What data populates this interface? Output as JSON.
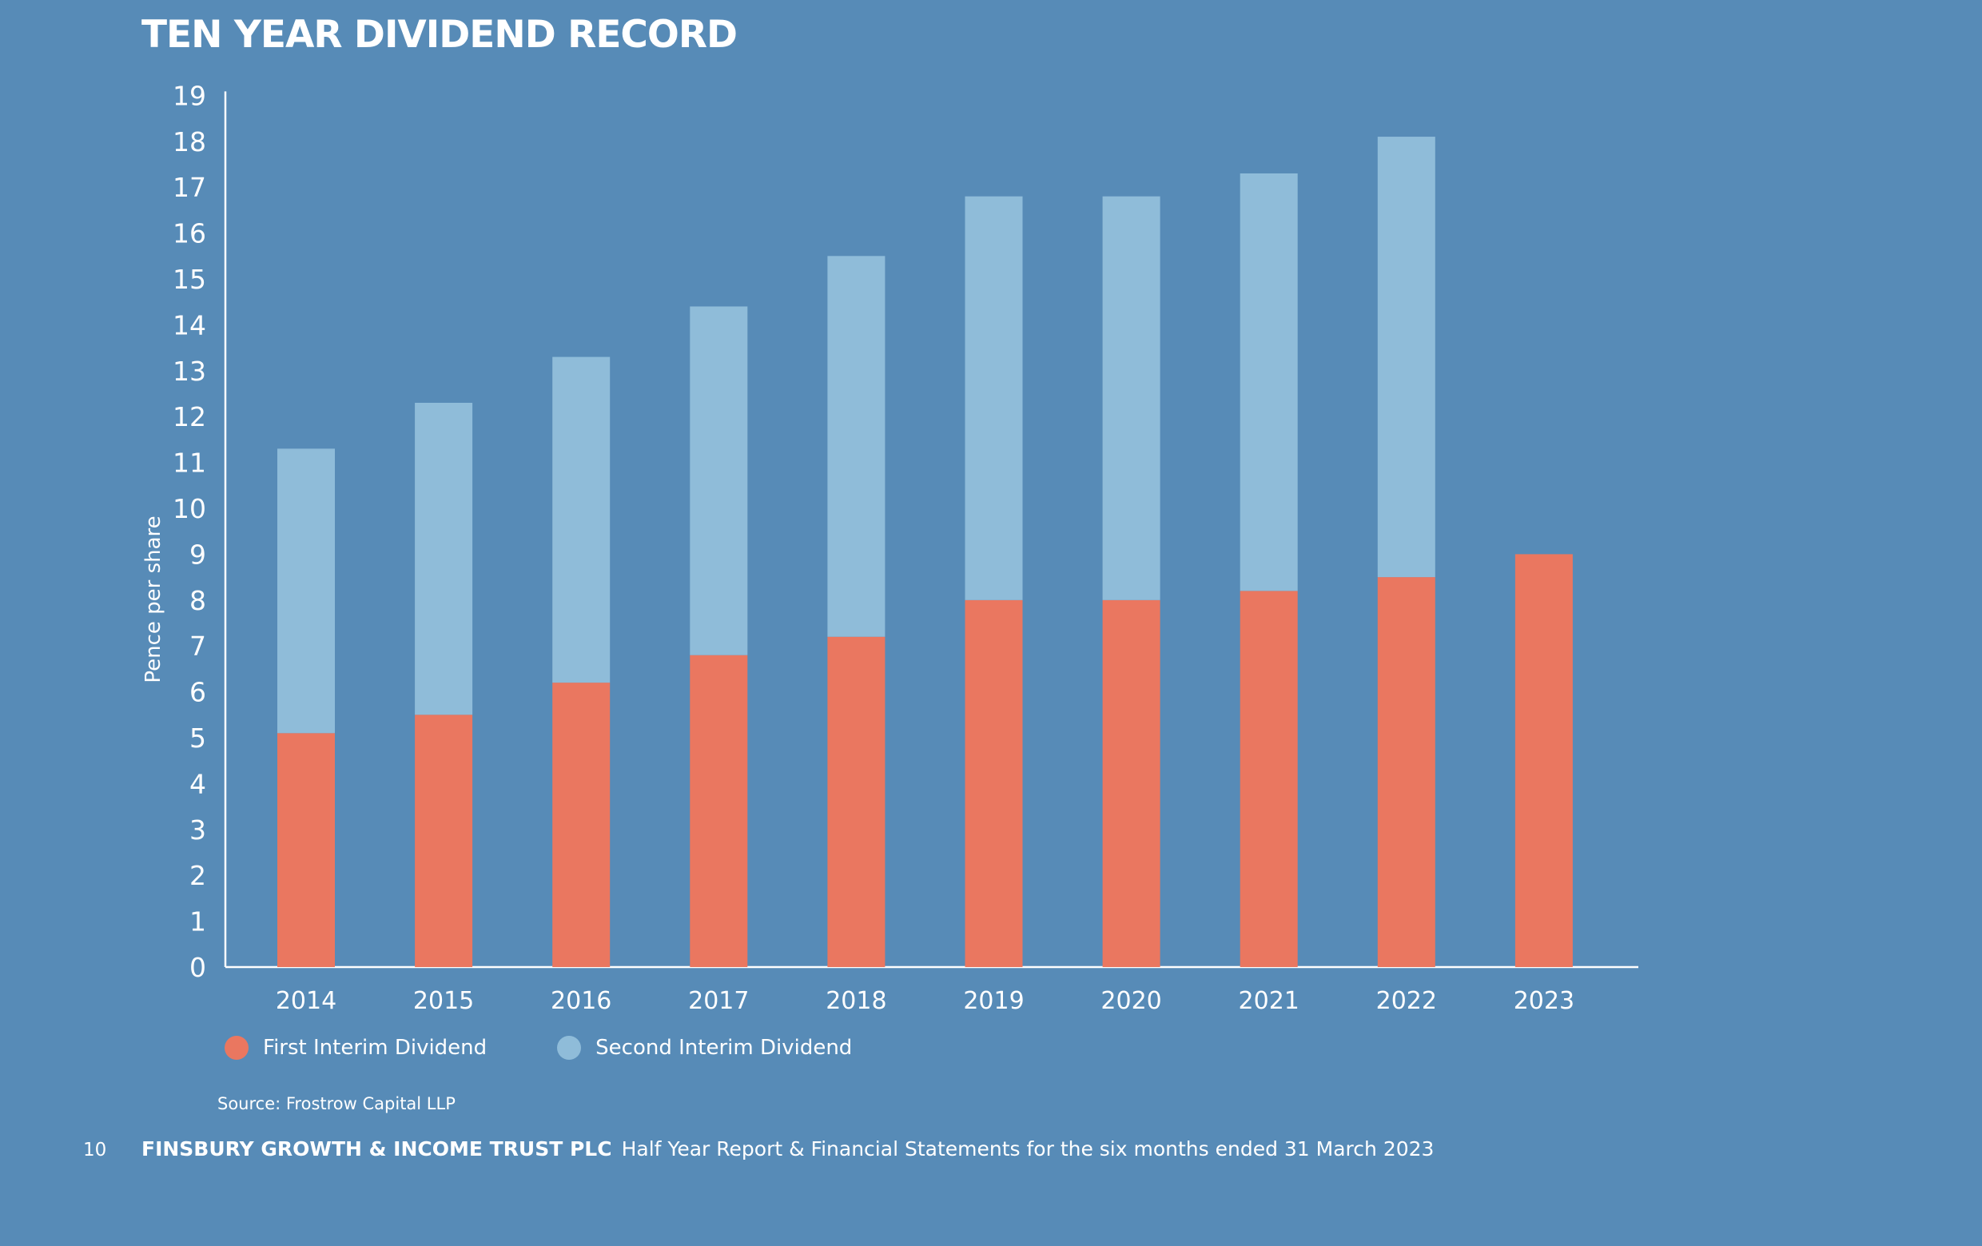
{
  "colors": {
    "background": "#578bb7",
    "first": "#ea7760",
    "second": "#8fbcd9",
    "axis": "#ffffff"
  },
  "chart_data": {
    "type": "bar",
    "stacked": true,
    "title": "TEN YEAR DIVIDEND RECORD",
    "xlabel": "",
    "ylabel": "Pence per share",
    "ylim": [
      0,
      19
    ],
    "yticks": [
      0,
      1,
      2,
      3,
      4,
      5,
      6,
      7,
      8,
      9,
      10,
      11,
      12,
      13,
      14,
      15,
      16,
      17,
      18,
      19
    ],
    "categories": [
      "2014",
      "2015",
      "2016",
      "2017",
      "2018",
      "2019",
      "2020",
      "2021",
      "2022",
      "2023"
    ],
    "series": [
      {
        "name": "First Interim Dividend",
        "color": "#ea7760",
        "values": [
          5.1,
          5.5,
          6.2,
          6.8,
          7.2,
          8.0,
          8.0,
          8.2,
          8.5,
          9.0
        ]
      },
      {
        "name": "Second Interim Dividend",
        "color": "#8fbcd9",
        "values": [
          6.2,
          6.8,
          7.1,
          7.6,
          8.3,
          8.8,
          8.8,
          9.1,
          9.6,
          0
        ]
      }
    ],
    "legend_position": "bottom-left",
    "grid": false
  },
  "source": "Source: Frostrow Capital LLP",
  "footer": {
    "page_number": "10",
    "company": "FINSBURY GROWTH & INCOME TRUST PLC",
    "text": "Half Year Report & Financial Statements for the six months ended 31 March 2023"
  }
}
